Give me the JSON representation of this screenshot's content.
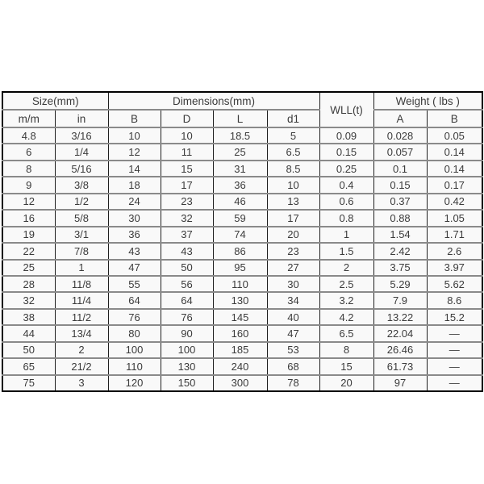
{
  "page": {
    "background_color": "#ffffff"
  },
  "table": {
    "title": "size-dimensions-wll-weight-specification-table",
    "colors": {
      "text": "#3b3b3b",
      "outer_border": "#000000",
      "vertical_grid": "#1f1f1f",
      "horizontal_grid": "#8a8a8a",
      "cell_background": "#f9f9f9"
    },
    "header": {
      "groups": [
        {
          "label": "Size(mm)",
          "colspan": 2
        },
        {
          "label": "Dimensions(mm)",
          "colspan": 4
        },
        {
          "label": "WLL(t)",
          "rowspan": 2
        },
        {
          "label": "Weight ( lbs )",
          "colspan": 2
        }
      ],
      "sub_labels": [
        "m/m",
        "in",
        "B",
        "D",
        "L",
        "d1",
        "A",
        "B"
      ]
    },
    "column_keys": [
      "size-mm",
      "size-in",
      "dim-b",
      "dim-d",
      "dim-l",
      "dim-d1",
      "wll-t",
      "weight-a",
      "weight-b"
    ],
    "rows": [
      [
        "4.8",
        "3/16",
        "10",
        "10",
        "18.5",
        "5",
        "0.09",
        "0.028",
        "0.05"
      ],
      [
        "6",
        "1/4",
        "12",
        "11",
        "25",
        "6.5",
        "0.15",
        "0.057",
        "0.14"
      ],
      [
        "8",
        "5/16",
        "14",
        "15",
        "31",
        "8.5",
        "0.25",
        "0.1",
        "0.14"
      ],
      [
        "9",
        "3/8",
        "18",
        "17",
        "36",
        "10",
        "0.4",
        "0.15",
        "0.17"
      ],
      [
        "12",
        "1/2",
        "24",
        "23",
        "46",
        "13",
        "0.6",
        "0.37",
        "0.42"
      ],
      [
        "16",
        "5/8",
        "30",
        "32",
        "59",
        "17",
        "0.8",
        "0.88",
        "1.05"
      ],
      [
        "19",
        "3/1",
        "36",
        "37",
        "74",
        "20",
        "1",
        "1.54",
        "1.71"
      ],
      [
        "22",
        "7/8",
        "43",
        "43",
        "86",
        "23",
        "1.5",
        "2.42",
        "2.6"
      ],
      [
        "25",
        "1",
        "47",
        "50",
        "95",
        "27",
        "2",
        "3.75",
        "3.97"
      ],
      [
        "28",
        "11/8",
        "55",
        "56",
        "110",
        "30",
        "2.5",
        "5.29",
        "5.62"
      ],
      [
        "32",
        "11/4",
        "64",
        "64",
        "130",
        "34",
        "3.2",
        "7.9",
        "8.6"
      ],
      [
        "38",
        "11/2",
        "76",
        "76",
        "145",
        "40",
        "4.2",
        "13.22",
        "15.2"
      ],
      [
        "44",
        "13/4",
        "80",
        "90",
        "160",
        "47",
        "6.5",
        "22.04",
        "—"
      ],
      [
        "50",
        "2",
        "100",
        "100",
        "185",
        "53",
        "8",
        "26.46",
        "—"
      ],
      [
        "65",
        "21/2",
        "110",
        "130",
        "240",
        "68",
        "15",
        "61.73",
        "—"
      ],
      [
        "75",
        "3",
        "120",
        "150",
        "300",
        "78",
        "20",
        "97",
        "—"
      ]
    ]
  }
}
